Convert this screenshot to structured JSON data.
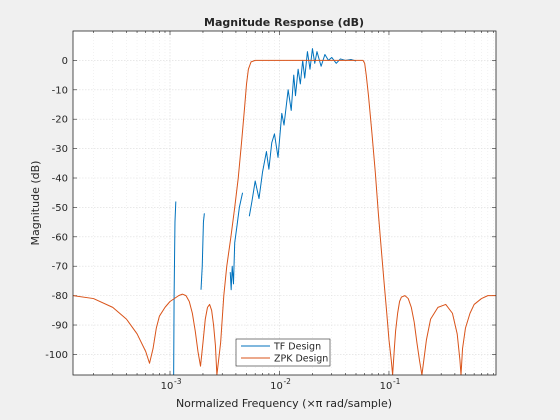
{
  "chart_data": {
    "type": "line",
    "title": "Magnitude Response (dB)",
    "xlabel": "Normalized Frequency (×π rad/sample)",
    "ylabel": "Magnitude (dB)",
    "xscale": "log",
    "xlim": [
      0.00013,
      0.95
    ],
    "ylim": [
      -107,
      10
    ],
    "grid": true,
    "legend_position": "bottom-center",
    "x_ticks": [
      {
        "value": 0.001,
        "label": "10",
        "exp": "-3"
      },
      {
        "value": 0.01,
        "label": "10",
        "exp": "-2"
      },
      {
        "value": 0.1,
        "label": "10",
        "exp": "-1"
      }
    ],
    "y_ticks": [
      0,
      -10,
      -20,
      -30,
      -40,
      -50,
      -60,
      -70,
      -80,
      -90,
      -100
    ],
    "series": [
      {
        "name": "TF Design",
        "color": "#0072BD",
        "segments": [
          [
            [
              0.00108,
              -107
            ],
            [
              0.00109,
              -80
            ],
            [
              0.00111,
              -55
            ],
            [
              0.00113,
              -48
            ]
          ],
          [
            [
              0.00192,
              -78
            ],
            [
              0.00197,
              -70
            ],
            [
              0.00202,
              -55
            ],
            [
              0.00206,
              -52
            ]
          ],
          [
            [
              0.00355,
              -72
            ],
            [
              0.00362,
              -78
            ],
            [
              0.0037,
              -70
            ],
            [
              0.0038,
              -76
            ],
            [
              0.0039,
              -62
            ],
            [
              0.0041,
              -56
            ],
            [
              0.0043,
              -50
            ],
            [
              0.0046,
              -45
            ]
          ],
          [
            [
              0.0053,
              -53
            ],
            [
              0.0056,
              -48
            ],
            [
              0.006,
              -41
            ],
            [
              0.0065,
              -47
            ],
            [
              0.007,
              -38
            ],
            [
              0.0076,
              -31
            ],
            [
              0.008,
              -37
            ],
            [
              0.0085,
              -28
            ],
            [
              0.009,
              -25
            ],
            [
              0.0097,
              -33
            ],
            [
              0.0105,
              -18
            ],
            [
              0.011,
              -22
            ],
            [
              0.012,
              -10
            ],
            [
              0.0128,
              -17
            ],
            [
              0.0135,
              -5
            ],
            [
              0.014,
              -12
            ],
            [
              0.0148,
              -3
            ],
            [
              0.0155,
              -8
            ],
            [
              0.0163,
              0
            ],
            [
              0.017,
              -6
            ],
            [
              0.018,
              3
            ],
            [
              0.019,
              -3
            ],
            [
              0.02,
              4
            ],
            [
              0.021,
              -1
            ],
            [
              0.022,
              3
            ],
            [
              0.024,
              -2
            ],
            [
              0.026,
              2
            ],
            [
              0.028,
              0
            ],
            [
              0.03,
              1
            ],
            [
              0.033,
              -1
            ],
            [
              0.036,
              0.5
            ],
            [
              0.04,
              0
            ],
            [
              0.045,
              0.3
            ],
            [
              0.05,
              -0.2
            ]
          ]
        ]
      },
      {
        "name": "ZPK Design",
        "color": "#D95319",
        "segments": [
          [
            [
              0.00013,
              -80
            ],
            [
              0.0002,
              -81
            ],
            [
              0.0003,
              -84
            ],
            [
              0.0004,
              -88
            ],
            [
              0.0005,
              -93
            ],
            [
              0.0006,
              -99
            ],
            [
              0.00065,
              -103
            ],
            [
              0.0007,
              -98
            ],
            [
              0.00075,
              -91
            ],
            [
              0.0008,
              -87
            ],
            [
              0.0009,
              -84
            ],
            [
              0.001,
              -82
            ],
            [
              0.0012,
              -80
            ],
            [
              0.0013,
              -79.5
            ],
            [
              0.0014,
              -80
            ],
            [
              0.0015,
              -82
            ],
            [
              0.0016,
              -86
            ],
            [
              0.0017,
              -92
            ],
            [
              0.0018,
              -99
            ],
            [
              0.0019,
              -104
            ],
            [
              0.002,
              -96
            ],
            [
              0.0021,
              -88
            ],
            [
              0.0022,
              -84
            ],
            [
              0.0023,
              -83
            ],
            [
              0.0024,
              -85
            ],
            [
              0.0025,
              -90
            ],
            [
              0.0026,
              -97
            ],
            [
              0.00268,
              -107
            ],
            [
              0.0029,
              -96
            ],
            [
              0.0031,
              -80
            ],
            [
              0.0033,
              -70
            ],
            [
              0.0036,
              -60
            ],
            [
              0.0039,
              -50
            ],
            [
              0.0042,
              -40
            ],
            [
              0.0045,
              -28
            ],
            [
              0.0048,
              -16
            ],
            [
              0.005,
              -8
            ],
            [
              0.0052,
              -3
            ],
            [
              0.0055,
              -0.5
            ],
            [
              0.006,
              0
            ],
            [
              0.05,
              0
            ],
            [
              0.058,
              0
            ],
            [
              0.06,
              -1
            ],
            [
              0.062,
              -5
            ],
            [
              0.065,
              -12
            ],
            [
              0.07,
              -25
            ],
            [
              0.075,
              -38
            ],
            [
              0.08,
              -52
            ],
            [
              0.085,
              -64
            ],
            [
              0.09,
              -75
            ],
            [
              0.095,
              -85
            ],
            [
              0.1,
              -95
            ],
            [
              0.105,
              -102
            ],
            [
              0.108,
              -107
            ],
            [
              0.112,
              -98
            ],
            [
              0.115,
              -92
            ],
            [
              0.12,
              -86
            ],
            [
              0.125,
              -82
            ],
            [
              0.13,
              -80.5
            ],
            [
              0.14,
              -80
            ],
            [
              0.15,
              -81
            ],
            [
              0.16,
              -84
            ],
            [
              0.17,
              -89
            ],
            [
              0.18,
              -96
            ],
            [
              0.19,
              -102
            ],
            [
              0.2,
              -107
            ]
          ],
          [
            [
              0.2,
              -107
            ],
            [
              0.22,
              -95
            ],
            [
              0.24,
              -88
            ],
            [
              0.28,
              -84
            ],
            [
              0.33,
              -83
            ],
            [
              0.38,
              -86
            ],
            [
              0.42,
              -93
            ],
            [
              0.445,
              -102
            ],
            [
              0.455,
              -107
            ],
            [
              0.47,
              -98
            ],
            [
              0.5,
              -91
            ],
            [
              0.55,
              -86
            ],
            [
              0.6,
              -83
            ],
            [
              0.7,
              -81
            ],
            [
              0.8,
              -80
            ],
            [
              0.95,
              -80
            ]
          ]
        ]
      }
    ]
  }
}
